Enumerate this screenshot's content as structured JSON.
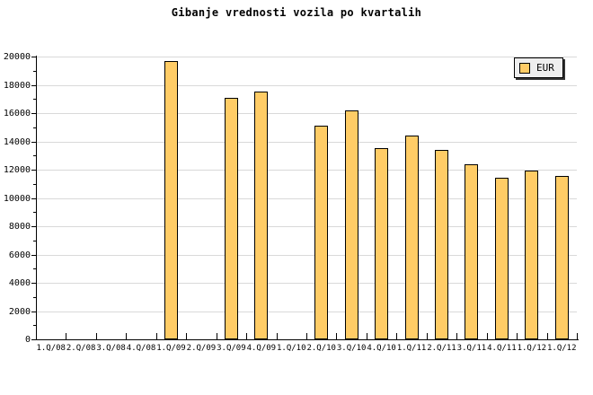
{
  "colors": {
    "background": "#FFFFFF",
    "bar_fill": "#FFCC66",
    "bar_border": "#000000",
    "grid": "#D9D9D9",
    "axis": "#000000",
    "legend_bg": "#EEEEEE",
    "text": "#000000"
  },
  "legend": {
    "label": "EUR",
    "position": "top-right"
  },
  "chart_data": {
    "type": "bar",
    "title": "Gibanje vrednosti vozila po kvartalih",
    "categories": [
      "1.Q/08",
      "2.Q/08",
      "3.Q/08",
      "4.Q/08",
      "1.Q/09",
      "2.Q/09",
      "3.Q/09",
      "4.Q/09",
      "1.Q/10",
      "2.Q/10",
      "3.Q/10",
      "4.Q/10",
      "1.Q/11",
      "2.Q/11",
      "3.Q/11",
      "4.Q/11",
      "1.Q/12",
      "1.Q/12"
    ],
    "series": [
      {
        "name": "EUR",
        "values": [
          null,
          null,
          null,
          null,
          19700,
          null,
          17100,
          17500,
          null,
          15100,
          16200,
          13500,
          14400,
          13400,
          12400,
          11400,
          11950,
          11550
        ]
      }
    ],
    "xlabel": "",
    "ylabel": "",
    "ylim": [
      0,
      20000
    ],
    "ytick_major": 2000,
    "ytick_minor": 1000,
    "ytick_labels": [
      "0",
      "2000",
      "4000",
      "6000",
      "8000",
      "10000",
      "12000",
      "14000",
      "16000",
      "18000",
      "20000"
    ],
    "grid": "horizontal-major",
    "legend_position": "top-right"
  }
}
